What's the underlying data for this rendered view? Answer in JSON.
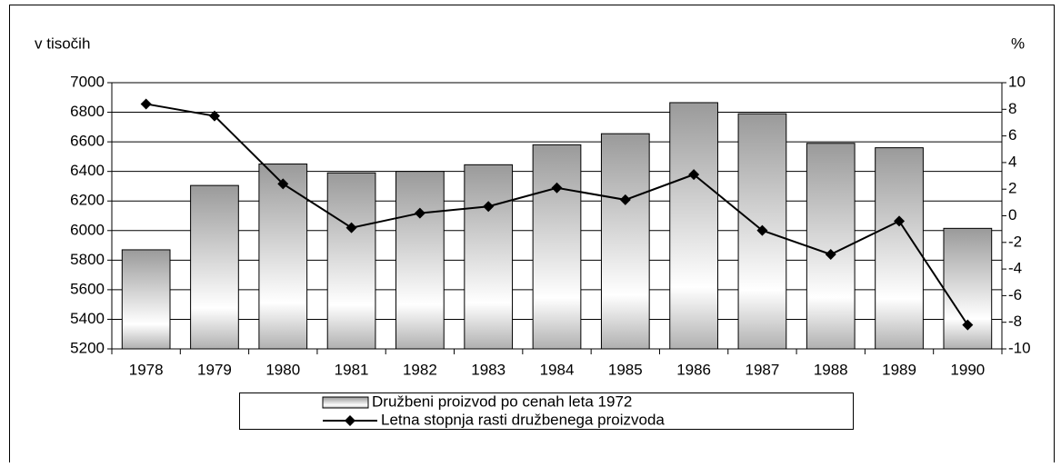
{
  "chart_data": {
    "type": "bar",
    "y_label": "v tisočih",
    "y2_label": "%",
    "categories": [
      "1978",
      "1979",
      "1980",
      "1981",
      "1982",
      "1983",
      "1984",
      "1985",
      "1986",
      "1987",
      "1988",
      "1989",
      "1990"
    ],
    "series": [
      {
        "name": "Družbeni proizvod po cenah leta 1972",
        "type": "bar",
        "color": "#a6a6a6",
        "values": [
          5870,
          6305,
          6450,
          6390,
          6400,
          6445,
          6580,
          6655,
          6865,
          6790,
          6590,
          6560,
          6015
        ]
      },
      {
        "name": "Letna stopnja rasti družbenega proizvoda",
        "type": "line",
        "axis": "y2",
        "color": "#000000",
        "values": [
          8.4,
          7.5,
          2.4,
          -0.9,
          0.2,
          0.7,
          2.1,
          1.2,
          3.1,
          -1.1,
          -2.9,
          -0.4,
          -8.2
        ]
      }
    ],
    "ylim": [
      5200,
      7000
    ],
    "yticks": [
      5200,
      5400,
      5600,
      5800,
      6000,
      6200,
      6400,
      6600,
      6800,
      7000
    ],
    "y2lim": [
      -10,
      10
    ],
    "y2ticks": [
      -10,
      -8,
      -6,
      -4,
      -2,
      0,
      2,
      4,
      6,
      8,
      10
    ],
    "grid": true,
    "legend": "bottom"
  }
}
